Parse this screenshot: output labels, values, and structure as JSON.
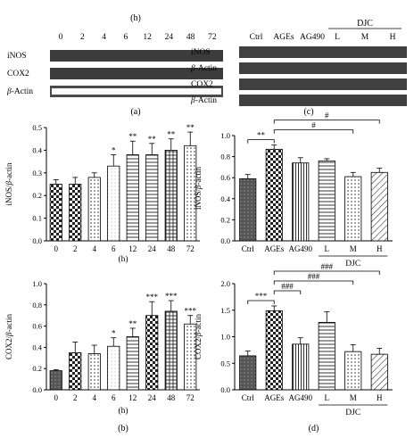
{
  "blots": {
    "a": {
      "panel_label": "(a)",
      "x_unit": "(h)",
      "lanes": [
        "0",
        "2",
        "4",
        "6",
        "12",
        "24",
        "48",
        "72"
      ],
      "rows": [
        "iNOS",
        "COX2",
        "β-Actin"
      ]
    },
    "c": {
      "panel_label": "(c)",
      "lanes": [
        "Ctrl",
        "AGEs",
        "AG490",
        "L",
        "M",
        "H"
      ],
      "group_label": "DJC",
      "rows": [
        "iNOS",
        "β-Actin",
        "COX2",
        "β-Actin"
      ]
    }
  },
  "chart_data": [
    {
      "id": "b_top",
      "type": "bar",
      "categories": [
        "0",
        "2",
        "4",
        "6",
        "12",
        "24",
        "48",
        "72"
      ],
      "values": [
        0.25,
        0.25,
        0.28,
        0.33,
        0.38,
        0.38,
        0.4,
        0.42
      ],
      "errors": [
        0.02,
        0.03,
        0.02,
        0.05,
        0.06,
        0.05,
        0.05,
        0.06
      ],
      "significance": [
        "",
        "",
        "",
        "*",
        "**",
        "**",
        "**",
        "**"
      ],
      "ylabel": "iNOS/β-actin",
      "xlabel": "(h)",
      "ylim": [
        0,
        0.5
      ],
      "yticks": [
        "0.0",
        "0.1",
        "0.2",
        "0.3",
        "0.4",
        "0.5"
      ],
      "patterns": [
        "checker",
        "checker",
        "dots",
        "light",
        "stripe-h",
        "stripe-h",
        "grid",
        "dots"
      ]
    },
    {
      "id": "b_bottom",
      "type": "bar",
      "categories": [
        "0",
        "2",
        "4",
        "6",
        "12",
        "24",
        "48",
        "72"
      ],
      "values": [
        0.18,
        0.35,
        0.34,
        0.41,
        0.5,
        0.7,
        0.74,
        0.62
      ],
      "errors": [
        0.01,
        0.1,
        0.08,
        0.08,
        0.08,
        0.13,
        0.1,
        0.08
      ],
      "significance": [
        "",
        "",
        "",
        "*",
        "**",
        "***",
        "***",
        "***"
      ],
      "ylabel": "COX2/β-actin",
      "xlabel": "(h)",
      "panel_label": "(b)",
      "ylim": [
        0,
        1.0
      ],
      "yticks": [
        "0.0",
        "0.2",
        "0.4",
        "0.6",
        "0.8",
        "1.0"
      ],
      "patterns": [
        "dark",
        "checker",
        "dots",
        "light",
        "stripe-h",
        "checker",
        "grid",
        "dots"
      ]
    },
    {
      "id": "d_top",
      "type": "bar",
      "categories": [
        "Ctrl",
        "AGEs",
        "AG490",
        "L",
        "M",
        "H"
      ],
      "group_label": "DJC",
      "values": [
        0.59,
        0.87,
        0.74,
        0.76,
        0.61,
        0.65
      ],
      "errors": [
        0.04,
        0.04,
        0.05,
        0.02,
        0.04,
        0.04
      ],
      "ylabel": "iNOS/β-actin",
      "ylim": [
        0,
        1.0
      ],
      "yticks": [
        "0.0",
        "0.2",
        "0.4",
        "0.6",
        "0.8",
        "1.0"
      ],
      "brackets": [
        {
          "from": 0,
          "to": 1,
          "label": "**"
        },
        {
          "from": 1,
          "to": 4,
          "label": "#"
        },
        {
          "from": 1,
          "to": 5,
          "label": "#"
        }
      ],
      "patterns": [
        "dark",
        "checker",
        "stripe-v",
        "stripe-h",
        "dots",
        "diag"
      ]
    },
    {
      "id": "d_bottom",
      "type": "bar",
      "categories": [
        "Ctrl",
        "AGEs",
        "AG490",
        "L",
        "M",
        "H"
      ],
      "group_label": "DJC",
      "panel_label": "(d)",
      "values": [
        0.64,
        1.49,
        0.86,
        1.27,
        0.72,
        0.67
      ],
      "errors": [
        0.09,
        0.09,
        0.12,
        0.2,
        0.13,
        0.11
      ],
      "ylabel": "COX2/β-actin",
      "ylim": [
        0,
        2.0
      ],
      "yticks": [
        "0.0",
        "0.5",
        "1.0",
        "1.5",
        "2.0"
      ],
      "brackets": [
        {
          "from": 0,
          "to": 1,
          "label": "***"
        },
        {
          "from": 1,
          "to": 2,
          "label": "###"
        },
        {
          "from": 1,
          "to": 4,
          "label": "###"
        },
        {
          "from": 1,
          "to": 5,
          "label": "###"
        }
      ],
      "patterns": [
        "dark",
        "checker",
        "stripe-v",
        "stripe-h",
        "dots",
        "diag"
      ]
    }
  ]
}
